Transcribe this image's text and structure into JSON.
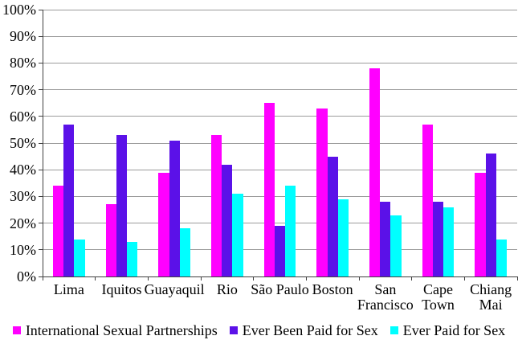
{
  "chart_data": {
    "type": "bar",
    "title": "",
    "xlabel": "",
    "ylabel": "",
    "categories": [
      "Lima",
      "Iquitos",
      "Guayaquil",
      "Rio",
      "São Paulo",
      "Boston",
      "San Francisco",
      "Cape Town",
      "Chiang Mai"
    ],
    "category_lines": [
      [
        "Lima"
      ],
      [
        "Iquitos"
      ],
      [
        "Guayaquil"
      ],
      [
        "Rio"
      ],
      [
        "São Paulo"
      ],
      [
        "Boston"
      ],
      [
        "San",
        "Francisco"
      ],
      [
        "Cape",
        "Town"
      ],
      [
        "Chiang",
        "Mai"
      ]
    ],
    "series": [
      {
        "name": "International Sexual Partnerships",
        "color": "#FF00FF",
        "values": [
          34,
          27,
          39,
          53,
          65,
          63,
          78,
          57,
          39
        ]
      },
      {
        "name": "Ever Been Paid for Sex",
        "color": "#5B11E8",
        "values": [
          57,
          53,
          51,
          42,
          19,
          45,
          28,
          28,
          46
        ]
      },
      {
        "name": "Ever Paid for Sex",
        "color": "#00FFFF",
        "values": [
          14,
          13,
          18,
          31,
          34,
          29,
          23,
          26,
          14
        ]
      }
    ],
    "ylim": [
      0,
      100
    ],
    "ytick_step": 10,
    "ytick_labels": [
      "0%",
      "10%",
      "20%",
      "30%",
      "40%",
      "50%",
      "60%",
      "70%",
      "80%",
      "90%",
      "100%"
    ],
    "grid": true,
    "legend_position": "bottom",
    "colors": {
      "gridline": "#9b9b9b",
      "axis": "#404040",
      "background": "#ffffff",
      "text": "#000000"
    }
  }
}
